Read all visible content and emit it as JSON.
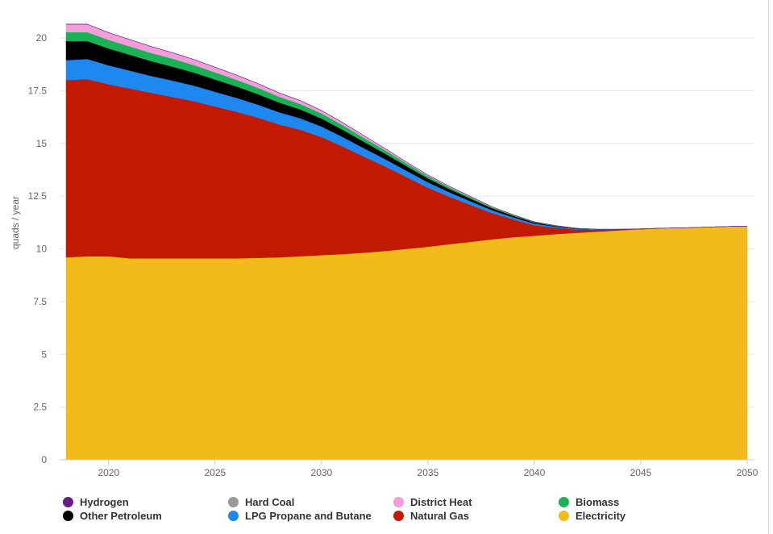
{
  "chart_data": {
    "type": "area",
    "stacked": true,
    "ylabel": "quads / year",
    "ylim": [
      0,
      20
    ],
    "yticks": [
      "0",
      "2.5",
      "5",
      "7.5",
      "10",
      "12.5",
      "15",
      "17.5",
      "20"
    ],
    "ytick_values": [
      0,
      2.5,
      5,
      7.5,
      10,
      12.5,
      15,
      17.5,
      20
    ],
    "xticks": [
      "2020",
      "2025",
      "2030",
      "2035",
      "2040",
      "2045",
      "2050"
    ],
    "xtick_values": [
      2020,
      2025,
      2030,
      2035,
      2040,
      2045,
      2050
    ],
    "xlim": [
      2017.7,
      2050
    ],
    "grid": true,
    "legend_position": "bottom",
    "x": [
      2018,
      2019,
      2020,
      2021,
      2022,
      2023,
      2024,
      2025,
      2026,
      2027,
      2028,
      2029,
      2030,
      2031,
      2032,
      2033,
      2034,
      2035,
      2036,
      2037,
      2038,
      2039,
      2040,
      2041,
      2042,
      2043,
      2044,
      2045,
      2046,
      2047,
      2048,
      2049,
      2050
    ],
    "series": [
      {
        "name": "Electricity",
        "color": "#f2bb1b",
        "values": [
          9.6,
          9.65,
          9.65,
          9.55,
          9.55,
          9.55,
          9.55,
          9.55,
          9.55,
          9.57,
          9.6,
          9.65,
          9.7,
          9.75,
          9.82,
          9.9,
          10.0,
          10.1,
          10.22,
          10.33,
          10.45,
          10.55,
          10.62,
          10.7,
          10.76,
          10.82,
          10.88,
          10.93,
          10.97,
          11.0,
          11.03,
          11.06,
          11.08
        ]
      },
      {
        "name": "Natural Gas",
        "color": "#c21a01",
        "values": [
          8.4,
          8.4,
          8.15,
          8.05,
          7.85,
          7.65,
          7.45,
          7.2,
          6.95,
          6.65,
          6.3,
          6.0,
          5.6,
          5.1,
          4.55,
          4.0,
          3.4,
          2.8,
          2.25,
          1.75,
          1.25,
          0.85,
          0.5,
          0.3,
          0.15,
          0.08,
          0.04,
          0.02,
          0.01,
          0.0,
          0.0,
          0.0,
          0.0
        ]
      },
      {
        "name": "LPG Propane and Butane",
        "color": "#1e88f0",
        "values": [
          0.95,
          0.95,
          0.9,
          0.85,
          0.8,
          0.78,
          0.74,
          0.7,
          0.66,
          0.62,
          0.58,
          0.54,
          0.5,
          0.45,
          0.4,
          0.35,
          0.3,
          0.26,
          0.22,
          0.18,
          0.14,
          0.1,
          0.08,
          0.05,
          0.03,
          0.02,
          0.01,
          0.0,
          0.0,
          0.0,
          0.0,
          0.0,
          0.0
        ]
      },
      {
        "name": "Other Petroleum",
        "color": "#000000",
        "values": [
          0.9,
          0.85,
          0.8,
          0.75,
          0.7,
          0.66,
          0.62,
          0.58,
          0.54,
          0.5,
          0.46,
          0.42,
          0.38,
          0.34,
          0.3,
          0.26,
          0.22,
          0.18,
          0.15,
          0.12,
          0.09,
          0.07,
          0.05,
          0.03,
          0.02,
          0.01,
          0.0,
          0.0,
          0.0,
          0.0,
          0.0,
          0.0,
          0.0
        ]
      },
      {
        "name": "Biomass",
        "color": "#19b356",
        "values": [
          0.42,
          0.42,
          0.41,
          0.4,
          0.39,
          0.38,
          0.36,
          0.34,
          0.32,
          0.3,
          0.28,
          0.26,
          0.24,
          0.22,
          0.19,
          0.16,
          0.13,
          0.11,
          0.09,
          0.07,
          0.05,
          0.04,
          0.03,
          0.02,
          0.01,
          0.0,
          0.0,
          0.0,
          0.0,
          0.0,
          0.0,
          0.0,
          0.0
        ]
      },
      {
        "name": "District Heat",
        "color": "#f59ddb",
        "values": [
          0.38,
          0.38,
          0.34,
          0.32,
          0.3,
          0.28,
          0.26,
          0.24,
          0.22,
          0.2,
          0.18,
          0.16,
          0.14,
          0.12,
          0.1,
          0.08,
          0.06,
          0.05,
          0.04,
          0.03,
          0.02,
          0.01,
          0.0,
          0.0,
          0.0,
          0.0,
          0.0,
          0.0,
          0.0,
          0.0,
          0.0,
          0.0,
          0.0
        ]
      },
      {
        "name": "Hard Coal",
        "color": "#999999",
        "values": [
          0,
          0,
          0,
          0,
          0,
          0,
          0,
          0,
          0,
          0,
          0,
          0,
          0,
          0,
          0,
          0,
          0,
          0,
          0,
          0,
          0,
          0,
          0,
          0,
          0,
          0,
          0,
          0,
          0,
          0,
          0,
          0,
          0
        ]
      },
      {
        "name": "Hydrogen",
        "color": "#6a1a8a",
        "values": [
          0,
          0,
          0,
          0,
          0,
          0,
          0,
          0,
          0,
          0,
          0,
          0,
          0,
          0,
          0,
          0,
          0,
          0,
          0,
          0,
          0,
          0,
          0,
          0,
          0,
          0,
          0,
          0,
          0,
          0,
          0,
          0,
          0
        ]
      }
    ]
  },
  "legend": {
    "rows": [
      [
        {
          "label": "Hydrogen",
          "color": "#6a1a8a"
        },
        {
          "label": "Hard Coal",
          "color": "#999999"
        },
        {
          "label": "District Heat",
          "color": "#f59ddb"
        },
        {
          "label": "Biomass",
          "color": "#19b356"
        }
      ],
      [
        {
          "label": "Other Petroleum",
          "color": "#000000"
        },
        {
          "label": "LPG Propane and Butane",
          "color": "#1e88f0"
        },
        {
          "label": "Natural Gas",
          "color": "#c21a01"
        },
        {
          "label": "Electricity",
          "color": "#f2bb1b"
        }
      ]
    ]
  }
}
